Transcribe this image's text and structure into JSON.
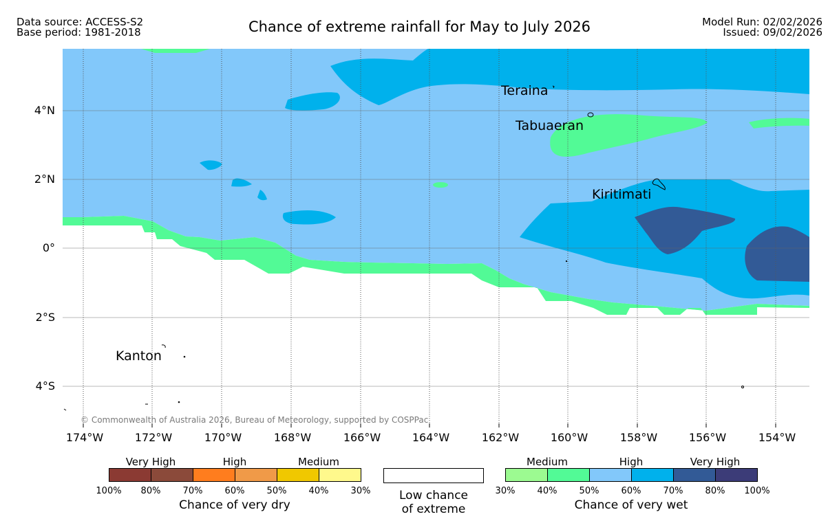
{
  "header": {
    "data_source": "Data source: ACCESS-S2",
    "base_period": "Base period: 1981-2018",
    "title": "Chance of extreme rainfall for May to July 2026",
    "model_run": "Model Run: 02/02/2026",
    "issued": "Issued: 09/02/2026"
  },
  "map": {
    "lat_ticks": [
      "4°N",
      "2°N",
      "0°",
      "2°S",
      "4°S"
    ],
    "lon_ticks": [
      "174°W",
      "172°W",
      "170°W",
      "168°W",
      "166°W",
      "164°W",
      "162°W",
      "160°W",
      "158°W",
      "156°W",
      "154°W"
    ],
    "places": {
      "teraina": "Teraina",
      "tabuaeran": "Tabuaeran",
      "kiritimati": "Kiritimati",
      "kanton": "Kanton"
    },
    "copyright": "© Commonwealth of Australia 2026, Bureau of Meteorology, supported by COSPPac"
  },
  "legend": {
    "dry": {
      "title": "Chance of very dry",
      "levels": [
        "Very High",
        "High",
        "Medium"
      ],
      "ticks": [
        "100%",
        "80%",
        "70%",
        "60%",
        "50%",
        "40%",
        "30%"
      ],
      "colors": [
        "#8b3a33",
        "#8b4a3a",
        "#ff7d1e",
        "#f09a48",
        "#f0c800",
        "#fff98c"
      ]
    },
    "low": {
      "line1": "Low chance",
      "line2": "of extreme"
    },
    "wet": {
      "title": "Chance of very wet",
      "levels": [
        "Medium",
        "High",
        "Very High"
      ],
      "ticks": [
        "30%",
        "40%",
        "50%",
        "60%",
        "70%",
        "80%",
        "100%"
      ],
      "colors": [
        "#9cfa91",
        "#52fa96",
        "#82c8fa",
        "#00b1ec",
        "#325a96",
        "#3c3c78"
      ]
    }
  },
  "colors": {
    "light_green": "#9cfa91",
    "green": "#52fa96",
    "light_blue": "#82c8fa",
    "blue": "#00b1ec",
    "dark_blue": "#325a96"
  }
}
